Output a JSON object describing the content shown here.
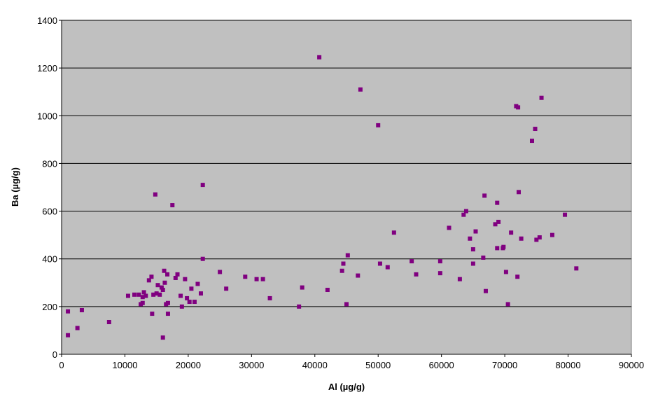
{
  "chart_data": {
    "type": "scatter",
    "title": "",
    "xlabel": "Al (µg/g)",
    "ylabel": "Ba (µg/g)",
    "xlim": [
      0,
      90000
    ],
    "ylim": [
      0,
      1400
    ],
    "x_ticks": [
      "0",
      "10000",
      "20000",
      "30000",
      "40000",
      "50000",
      "60000",
      "70000",
      "80000",
      "90000"
    ],
    "y_ticks": [
      "0",
      "200",
      "400",
      "600",
      "800",
      "1000",
      "1200",
      "1400"
    ],
    "grid": "horizontal",
    "legend": "none",
    "colors": {
      "plot_background": "#c0c0c0",
      "marker": "#800080",
      "gridline": "#000000"
    },
    "series": [
      {
        "points": [
          [
            1000,
            80
          ],
          [
            1000,
            180
          ],
          [
            2500,
            110
          ],
          [
            3200,
            185
          ],
          [
            7500,
            135
          ],
          [
            10500,
            245
          ],
          [
            11500,
            250
          ],
          [
            12200,
            250
          ],
          [
            12500,
            210
          ],
          [
            12800,
            215
          ],
          [
            12800,
            240
          ],
          [
            13000,
            260
          ],
          [
            13300,
            245
          ],
          [
            13800,
            310
          ],
          [
            14200,
            325
          ],
          [
            14300,
            170
          ],
          [
            14500,
            250
          ],
          [
            14800,
            670
          ],
          [
            15000,
            255
          ],
          [
            15200,
            290
          ],
          [
            15500,
            250
          ],
          [
            15800,
            280
          ],
          [
            16000,
            70
          ],
          [
            16000,
            270
          ],
          [
            16200,
            350
          ],
          [
            16300,
            300
          ],
          [
            16500,
            210
          ],
          [
            16700,
            335
          ],
          [
            16800,
            170
          ],
          [
            16800,
            215
          ],
          [
            17500,
            625
          ],
          [
            18000,
            320
          ],
          [
            18300,
            335
          ],
          [
            18800,
            245
          ],
          [
            19000,
            200
          ],
          [
            19500,
            315
          ],
          [
            19800,
            235
          ],
          [
            20200,
            220
          ],
          [
            20500,
            275
          ],
          [
            21000,
            220
          ],
          [
            21500,
            295
          ],
          [
            22000,
            255
          ],
          [
            22300,
            710
          ],
          [
            22300,
            400
          ],
          [
            25000,
            345
          ],
          [
            26000,
            275
          ],
          [
            29000,
            325
          ],
          [
            30800,
            315
          ],
          [
            31800,
            315
          ],
          [
            32900,
            235
          ],
          [
            37500,
            200
          ],
          [
            38000,
            280
          ],
          [
            40700,
            1245
          ],
          [
            42000,
            270
          ],
          [
            44300,
            350
          ],
          [
            44500,
            380
          ],
          [
            45000,
            210
          ],
          [
            45200,
            415
          ],
          [
            46800,
            330
          ],
          [
            47200,
            1110
          ],
          [
            50000,
            960
          ],
          [
            50300,
            380
          ],
          [
            51500,
            365
          ],
          [
            52500,
            510
          ],
          [
            55300,
            390
          ],
          [
            56000,
            335
          ],
          [
            59800,
            390
          ],
          [
            59800,
            340
          ],
          [
            61200,
            530
          ],
          [
            62900,
            315
          ],
          [
            63500,
            585
          ],
          [
            63900,
            600
          ],
          [
            64500,
            485
          ],
          [
            65000,
            440
          ],
          [
            65000,
            380
          ],
          [
            65400,
            515
          ],
          [
            66600,
            405
          ],
          [
            66800,
            665
          ],
          [
            67000,
            265
          ],
          [
            68500,
            545
          ],
          [
            68800,
            445
          ],
          [
            68800,
            635
          ],
          [
            69000,
            555
          ],
          [
            69700,
            445
          ],
          [
            69800,
            450
          ],
          [
            70200,
            345
          ],
          [
            70500,
            210
          ],
          [
            71000,
            510
          ],
          [
            71800,
            1040
          ],
          [
            72100,
            1035
          ],
          [
            72000,
            325
          ],
          [
            72200,
            680
          ],
          [
            72600,
            485
          ],
          [
            74300,
            895
          ],
          [
            74800,
            945
          ],
          [
            75000,
            480
          ],
          [
            75500,
            490
          ],
          [
            75800,
            1075
          ],
          [
            77500,
            500
          ],
          [
            79500,
            585
          ],
          [
            81300,
            360
          ]
        ]
      }
    ]
  }
}
